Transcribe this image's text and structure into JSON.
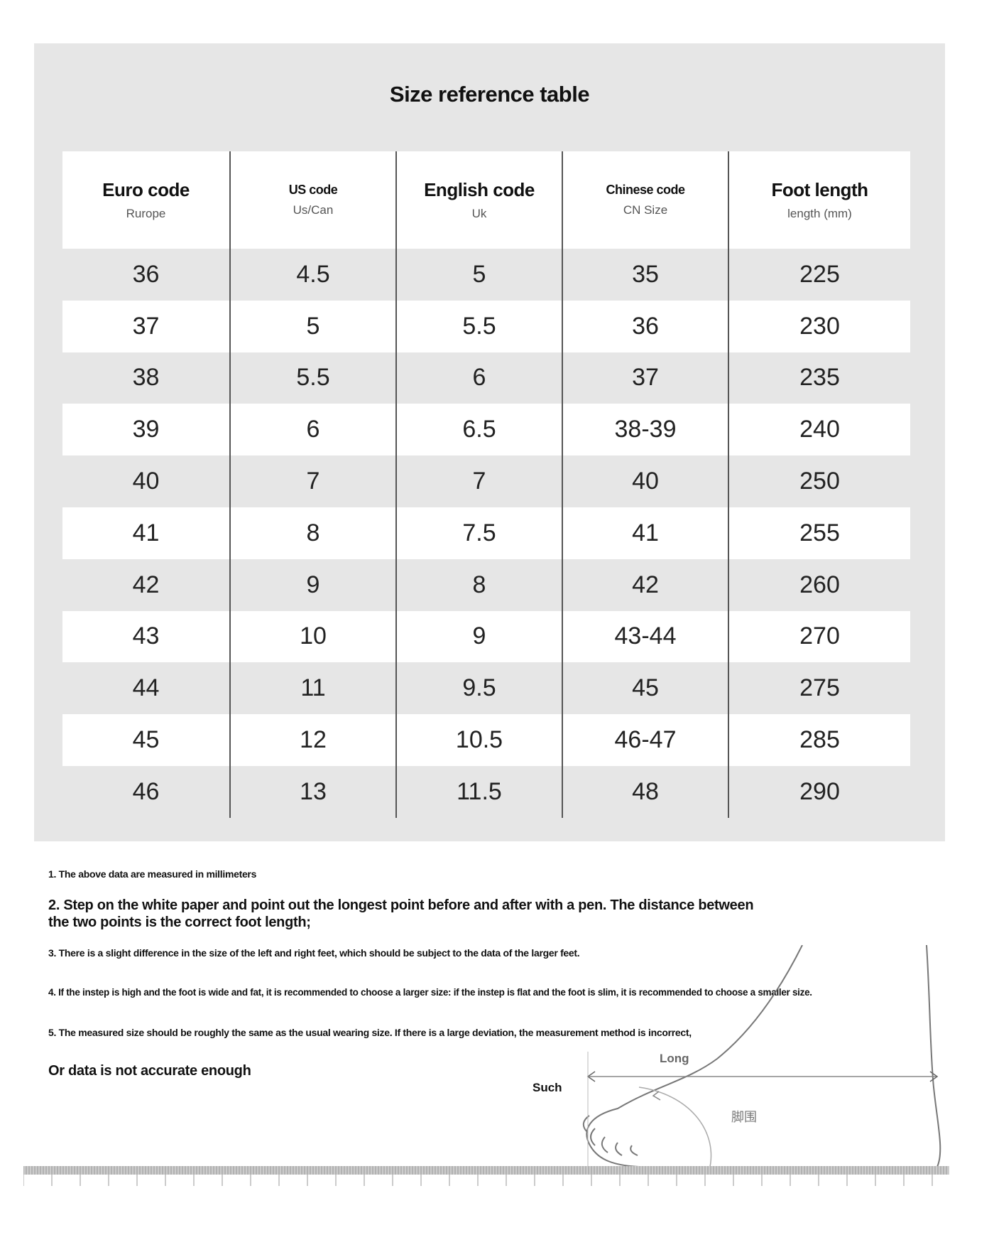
{
  "title": "Size reference table",
  "columns": [
    {
      "label": "Euro code",
      "sub": "Rurope"
    },
    {
      "label": "US code",
      "sub": "Us/Can"
    },
    {
      "label": "English code",
      "sub": "Uk"
    },
    {
      "label": "Chinese code",
      "sub": "CN Size"
    },
    {
      "label": "Foot length",
      "sub": "length (mm)"
    }
  ],
  "rows": [
    [
      "36",
      "4.5",
      "5",
      "35",
      "225"
    ],
    [
      "37",
      "5",
      "5.5",
      "36",
      "230"
    ],
    [
      "38",
      "5.5",
      "6",
      "37",
      "235"
    ],
    [
      "39",
      "6",
      "6.5",
      "38-39",
      "240"
    ],
    [
      "40",
      "7",
      "7",
      "40",
      "250"
    ],
    [
      "41",
      "8",
      "7.5",
      "41",
      "255"
    ],
    [
      "42",
      "9",
      "8",
      "42",
      "260"
    ],
    [
      "43",
      "10",
      "9",
      "43-44",
      "270"
    ],
    [
      "44",
      "11",
      "9.5",
      "45",
      "275"
    ],
    [
      "45",
      "12",
      "10.5",
      "46-47",
      "285"
    ],
    [
      "46",
      "13",
      "11.5",
      "48",
      "290"
    ]
  ],
  "notes": [
    "1. The above data are measured in millimeters",
    "2. Step on the white paper and point out the longest point before and after with a pen. The distance between the two points is the correct foot length;",
    "3. There is a slight difference in the size of the left and right feet, which should be subject to the data of the larger feet.",
    "4. If the instep is high and the foot is wide and fat, it is recommended to choose a larger size: if the instep is flat and the foot is slim, it is recommended to choose a smaller size.",
    "5. The measured size should be roughly the same as the usual wearing size. If there is a large deviation, the measurement method is incorrect,",
    "Or data is not accurate enough"
  ],
  "diagram": {
    "long_label": "Long",
    "such_label": "Such",
    "foot_label": "脚围"
  }
}
